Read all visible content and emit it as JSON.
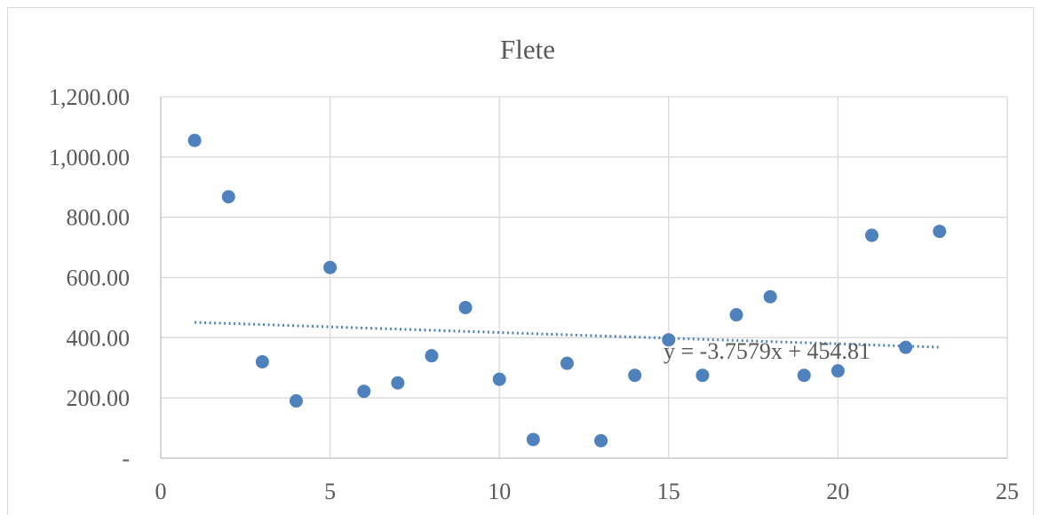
{
  "chart_data": {
    "type": "scatter",
    "title": "Flete",
    "xlabel": "",
    "ylabel": "",
    "xlim": [
      0,
      25
    ],
    "ylim": [
      0,
      1200
    ],
    "x_ticks": [
      0,
      5,
      10,
      15,
      20,
      25
    ],
    "x_tick_labels": [
      "0",
      "5",
      "10",
      "15",
      "20",
      "25"
    ],
    "y_ticks": [
      0,
      200,
      400,
      600,
      800,
      1000,
      1200
    ],
    "y_tick_labels": [
      "-",
      "200.00",
      "400.00",
      "600.00",
      "800.00",
      "1,000.00",
      "1,200.00"
    ],
    "grid": true,
    "series": [
      {
        "x": [
          1,
          2,
          3,
          4,
          5,
          6,
          7,
          8,
          9,
          10,
          11,
          12,
          13,
          14,
          15,
          16,
          17,
          18,
          19,
          20,
          21,
          22,
          23
        ],
        "y": [
          1055,
          868,
          320,
          190,
          633,
          222,
          250,
          340,
          500,
          262,
          62,
          315,
          58,
          275,
          393,
          275,
          476,
          536,
          275,
          290,
          740,
          368,
          753
        ],
        "color": "#4f81bd"
      }
    ],
    "trendline": {
      "type": "linear",
      "slope": -3.7579,
      "intercept": 454.81,
      "x_range": [
        1,
        23
      ],
      "equation": "y = -3.7579x + 454.81",
      "color": "#4f81bd"
    }
  }
}
